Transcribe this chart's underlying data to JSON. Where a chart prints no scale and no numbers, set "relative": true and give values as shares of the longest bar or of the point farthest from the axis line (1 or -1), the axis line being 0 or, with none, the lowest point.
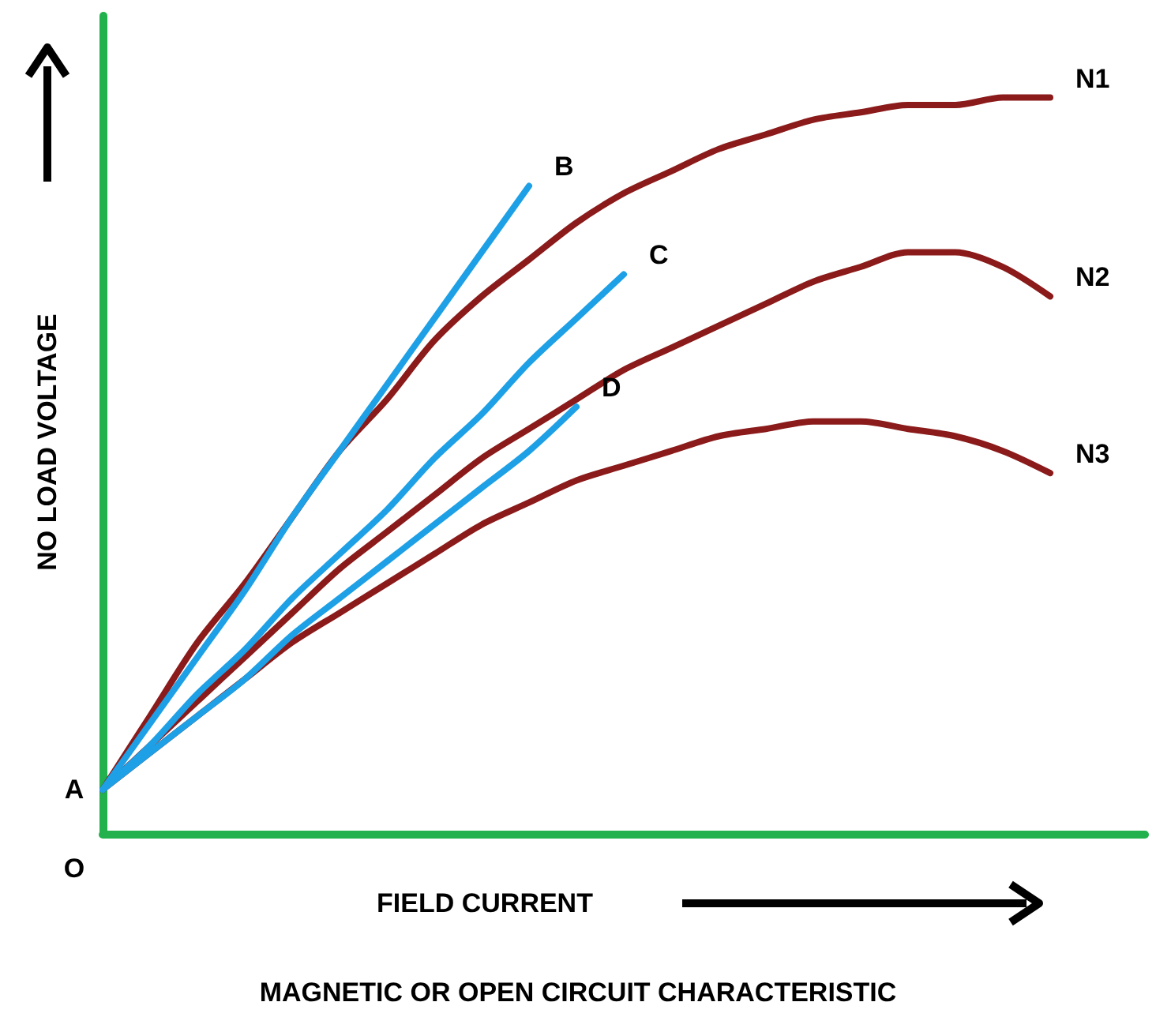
{
  "chart_data": {
    "type": "line",
    "relative": true,
    "title": "MAGNETIC OR OPEN CIRCUIT CHARACTERISTIC",
    "xlabel": "FIELD CURRENT",
    "ylabel": "NO LOAD VOLTAGE",
    "annotations": [
      "A",
      "O"
    ],
    "categories": [
      null,
      null,
      null,
      null,
      null,
      null,
      null,
      null,
      null,
      null,
      null,
      null,
      null,
      null,
      null,
      null,
      null,
      null,
      null,
      null,
      null,
      null,
      null
    ],
    "marker": "none",
    "line_style": "solid",
    "grid": false,
    "legend": false,
    "series": [
      {
        "name": "B",
        "color": "#1ea0e6",
        "values": [
          0.06,
          0.15,
          0.24,
          0.33,
          0.43,
          0.52,
          0.61,
          0.7,
          0.79,
          0.88,
          null,
          null,
          null,
          null,
          null,
          null,
          null,
          null,
          null,
          null,
          null,
          null,
          null
        ]
      },
      {
        "name": "C",
        "color": "#1ea0e6",
        "values": [
          0.06,
          0.12,
          0.19,
          0.25,
          0.32,
          0.38,
          0.44,
          0.51,
          0.57,
          0.64,
          0.7,
          0.76,
          null,
          null,
          null,
          null,
          null,
          null,
          null,
          null,
          null,
          null,
          null
        ]
      },
      {
        "name": "D",
        "color": "#1ea0e6",
        "values": [
          0.06,
          0.11,
          0.16,
          0.21,
          0.27,
          0.32,
          0.37,
          0.42,
          0.47,
          0.52,
          0.58,
          null,
          null,
          null,
          null,
          null,
          null,
          null,
          null,
          null,
          null,
          null,
          null
        ]
      },
      {
        "name": "N1",
        "color": "#8b1a1a",
        "values": [
          0.06,
          0.16,
          0.26,
          0.34,
          0.43,
          0.52,
          0.59,
          0.67,
          0.73,
          0.78,
          0.83,
          0.87,
          0.9,
          0.93,
          0.95,
          0.97,
          0.98,
          0.99,
          0.99,
          1.0,
          1.0,
          null,
          null
        ]
      },
      {
        "name": "N2",
        "color": "#8b1a1a",
        "values": [
          0.06,
          0.12,
          0.18,
          0.24,
          0.3,
          0.36,
          0.41,
          0.46,
          0.51,
          0.55,
          0.59,
          0.63,
          0.66,
          0.69,
          0.72,
          0.75,
          0.77,
          0.79,
          0.79,
          0.77,
          0.73,
          null,
          null
        ]
      },
      {
        "name": "N3",
        "color": "#8b1a1a",
        "values": [
          0.06,
          0.11,
          0.16,
          0.21,
          0.26,
          0.3,
          0.34,
          0.38,
          0.42,
          0.45,
          0.48,
          0.5,
          0.52,
          0.54,
          0.55,
          0.56,
          0.56,
          0.55,
          0.54,
          0.52,
          0.49,
          null,
          null
        ]
      }
    ]
  }
}
